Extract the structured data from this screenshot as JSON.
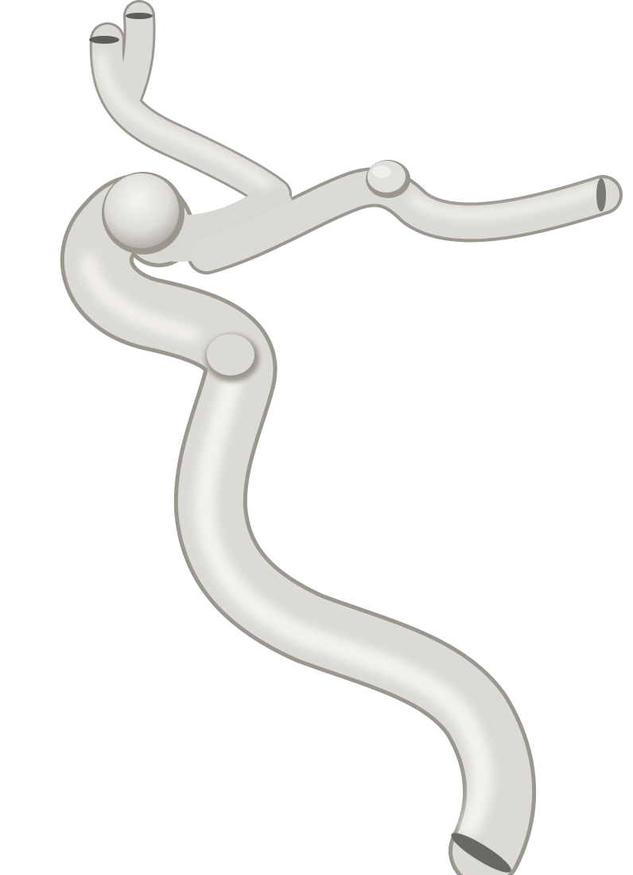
{
  "scene": {
    "background_color": "#ffffff",
    "surface_color": "#e8e6e1",
    "shadow_color": "#8f8c86",
    "highlight_color": "#f7f6f2"
  }
}
